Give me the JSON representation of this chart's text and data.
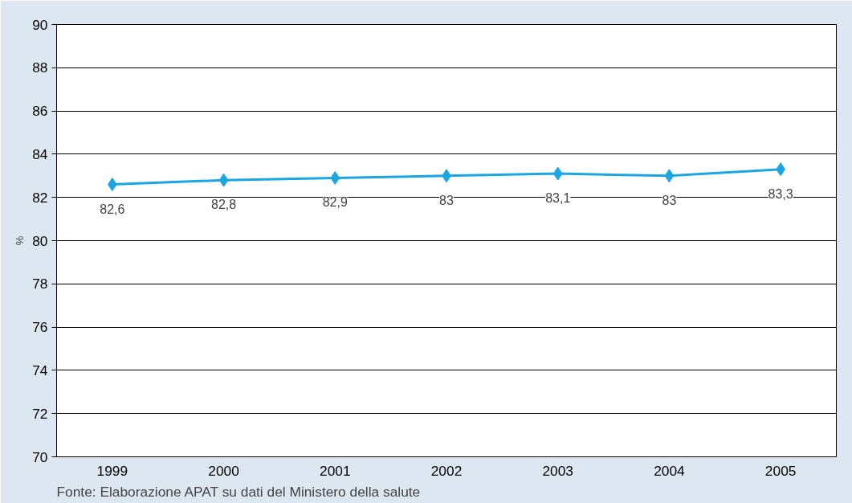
{
  "chart_data": {
    "type": "line",
    "ylabel": "%",
    "categories": [
      "1999",
      "2000",
      "2001",
      "2002",
      "2003",
      "2004",
      "2005"
    ],
    "values": [
      82.6,
      82.8,
      82.9,
      83,
      83.1,
      83,
      83.3
    ],
    "value_labels": [
      "82,6",
      "82,8",
      "82,9",
      "83",
      "83,1",
      "83",
      "83,3"
    ],
    "color": "#1ba6e3",
    "marker": "diamond",
    "line_style": "solid",
    "ylim": [
      70,
      90
    ],
    "yticks": [
      70,
      72,
      74,
      76,
      78,
      80,
      82,
      84,
      86,
      88,
      90
    ],
    "grid": "y",
    "annotations": [
      "Fonte: Elaborazione APAT su dati del Ministero della salute"
    ]
  }
}
